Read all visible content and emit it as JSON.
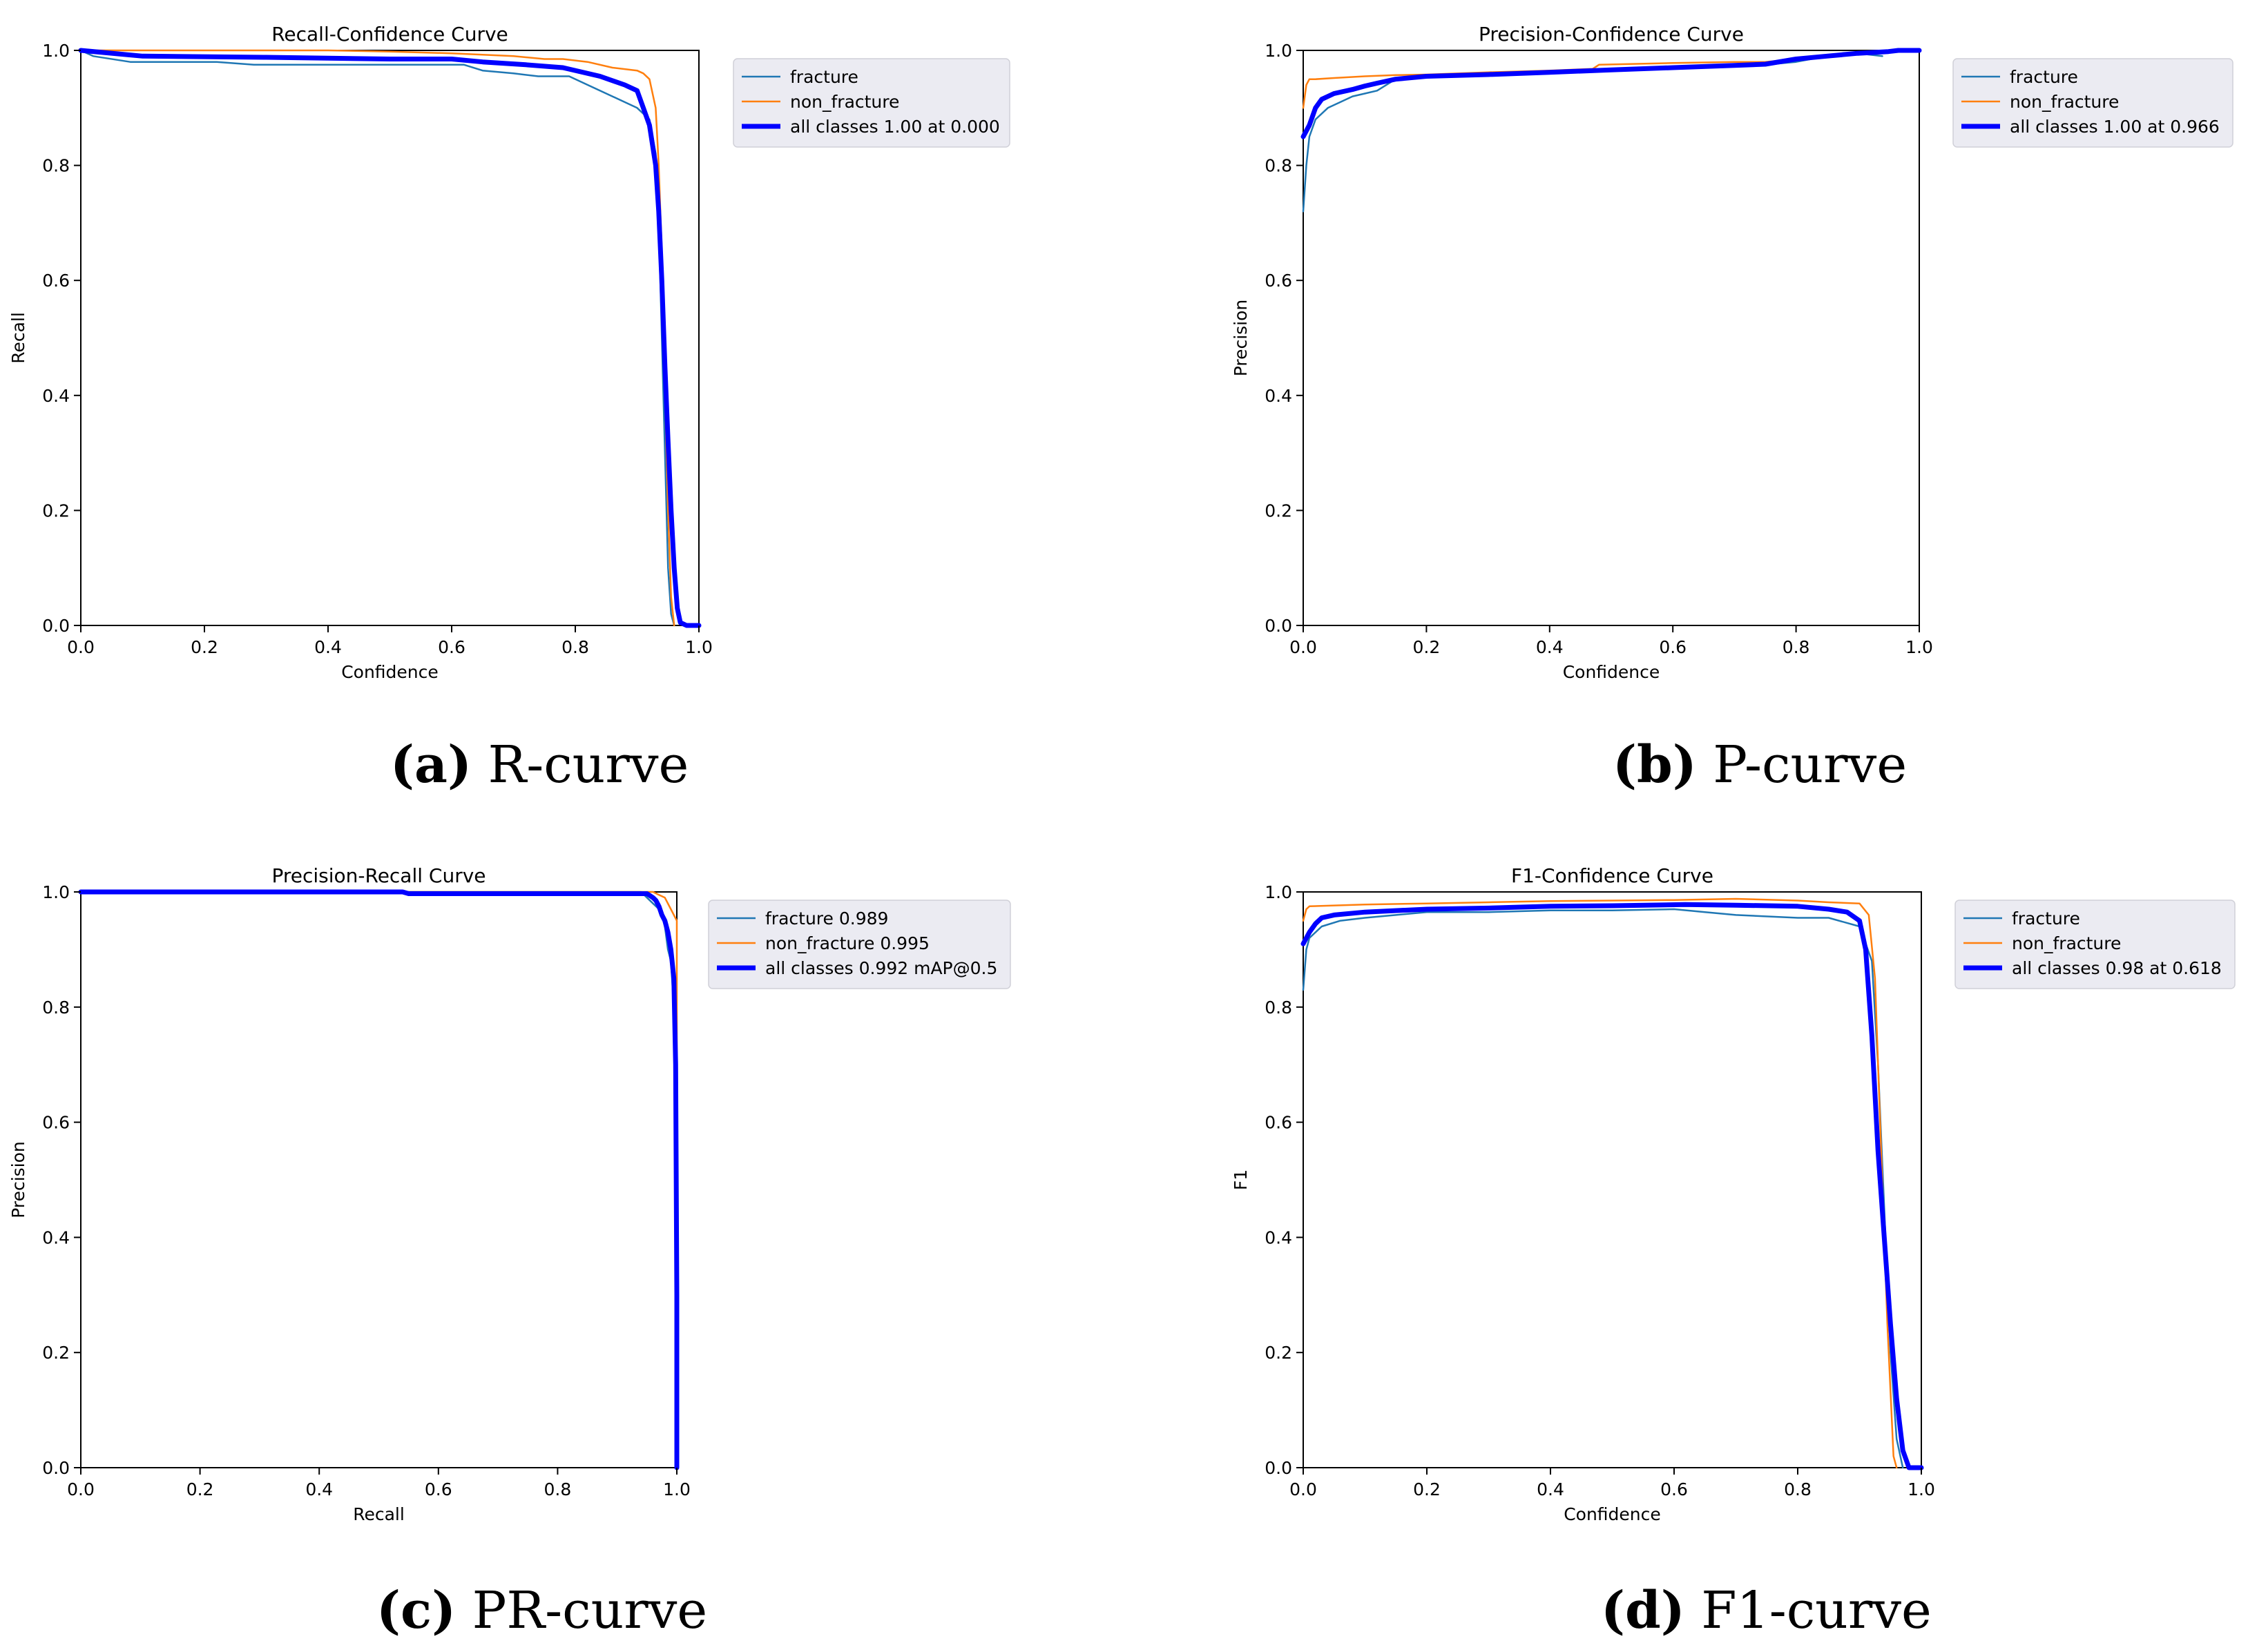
{
  "colors": {
    "fracture": "#1f77b4",
    "non_fracture": "#ff7f0e",
    "all_classes": "#0000ff",
    "legend_bg": "#ebebf2",
    "axis": "#000000"
  },
  "chart_data": [
    {
      "id": "a",
      "type": "line",
      "title": "Recall-Confidence Curve",
      "xlabel": "Confidence",
      "ylabel": "Recall",
      "xlim": [
        0,
        1
      ],
      "ylim": [
        0,
        1
      ],
      "xticks": [
        "0.0",
        "0.2",
        "0.4",
        "0.6",
        "0.8",
        "1.0"
      ],
      "yticks": [
        "0.0",
        "0.2",
        "0.4",
        "0.6",
        "0.8",
        "1.0"
      ],
      "grid": false,
      "legend_placement": "outside top-right",
      "series": [
        {
          "name": "fracture",
          "key": "fracture",
          "x": [
            0,
            0.02,
            0.08,
            0.22,
            0.28,
            0.62,
            0.65,
            0.7,
            0.74,
            0.79,
            0.82,
            0.86,
            0.9,
            0.92,
            0.93,
            0.935,
            0.94,
            0.945,
            0.95,
            0.955,
            0.96
          ],
          "y": [
            1.0,
            0.99,
            0.98,
            0.98,
            0.975,
            0.975,
            0.965,
            0.96,
            0.955,
            0.955,
            0.94,
            0.92,
            0.9,
            0.88,
            0.82,
            0.7,
            0.5,
            0.3,
            0.1,
            0.02,
            0.0
          ]
        },
        {
          "name": "non_fracture",
          "key": "non_fracture",
          "x": [
            0,
            0.4,
            0.5,
            0.6,
            0.7,
            0.75,
            0.78,
            0.82,
            0.86,
            0.9,
            0.91,
            0.92,
            0.93,
            0.935,
            0.94,
            0.945,
            0.95,
            0.955,
            0.96
          ],
          "y": [
            1.0,
            1.0,
            0.998,
            0.995,
            0.99,
            0.985,
            0.985,
            0.98,
            0.97,
            0.965,
            0.96,
            0.95,
            0.9,
            0.8,
            0.65,
            0.4,
            0.2,
            0.05,
            0.0
          ]
        },
        {
          "name": "all classes 1.00 at 0.000",
          "key": "all_classes",
          "x": [
            0,
            0.1,
            0.3,
            0.5,
            0.6,
            0.65,
            0.72,
            0.78,
            0.84,
            0.88,
            0.9,
            0.91,
            0.92,
            0.93,
            0.935,
            0.94,
            0.945,
            0.95,
            0.955,
            0.96,
            0.965,
            0.97,
            0.98,
            1.0
          ],
          "y": [
            1.0,
            0.99,
            0.988,
            0.985,
            0.985,
            0.98,
            0.975,
            0.97,
            0.955,
            0.94,
            0.93,
            0.9,
            0.87,
            0.8,
            0.72,
            0.6,
            0.45,
            0.32,
            0.2,
            0.1,
            0.03,
            0.005,
            0.0,
            0.0
          ]
        }
      ]
    },
    {
      "id": "b",
      "type": "line",
      "title": "Precision-Confidence Curve",
      "xlabel": "Confidence",
      "ylabel": "Precision",
      "xlim": [
        0,
        1
      ],
      "ylim": [
        0,
        1
      ],
      "xticks": [
        "0.0",
        "0.2",
        "0.4",
        "0.6",
        "0.8",
        "1.0"
      ],
      "yticks": [
        "0.0",
        "0.2",
        "0.4",
        "0.6",
        "0.8",
        "1.0"
      ],
      "grid": false,
      "legend_placement": "outside top-right",
      "series": [
        {
          "name": "fracture",
          "key": "fracture",
          "x": [
            0,
            0.005,
            0.01,
            0.02,
            0.04,
            0.06,
            0.08,
            0.1,
            0.12,
            0.15,
            0.2,
            0.3,
            0.4,
            0.5,
            0.6,
            0.7,
            0.75,
            0.8,
            0.85,
            0.9,
            0.94
          ],
          "y": [
            0.72,
            0.8,
            0.85,
            0.88,
            0.9,
            0.91,
            0.92,
            0.925,
            0.93,
            0.95,
            0.955,
            0.958,
            0.962,
            0.965,
            0.968,
            0.972,
            0.975,
            0.98,
            0.99,
            0.995,
            0.99
          ]
        },
        {
          "name": "non_fracture",
          "key": "non_fracture",
          "x": [
            0,
            0.005,
            0.01,
            0.02,
            0.05,
            0.1,
            0.15,
            0.2,
            0.3,
            0.4,
            0.47,
            0.48,
            0.6,
            0.7,
            0.75,
            0.8,
            0.85,
            0.9,
            0.95,
            1.0
          ],
          "y": [
            0.9,
            0.94,
            0.95,
            0.95,
            0.952,
            0.955,
            0.957,
            0.958,
            0.962,
            0.965,
            0.968,
            0.975,
            0.978,
            0.98,
            0.98,
            0.985,
            0.99,
            0.995,
            1.0,
            1.0
          ]
        },
        {
          "name": "all classes 1.00 at 0.966",
          "key": "all_classes",
          "x": [
            0,
            0.01,
            0.02,
            0.03,
            0.05,
            0.08,
            0.1,
            0.12,
            0.15,
            0.2,
            0.3,
            0.4,
            0.5,
            0.6,
            0.7,
            0.75,
            0.8,
            0.85,
            0.9,
            0.95,
            0.966,
            1.0
          ],
          "y": [
            0.85,
            0.87,
            0.9,
            0.915,
            0.925,
            0.932,
            0.938,
            0.943,
            0.95,
            0.955,
            0.958,
            0.962,
            0.966,
            0.97,
            0.974,
            0.976,
            0.985,
            0.99,
            0.995,
            0.998,
            1.0,
            1.0
          ]
        }
      ]
    },
    {
      "id": "c",
      "type": "line",
      "title": "Precision-Recall Curve",
      "xlabel": "Recall",
      "ylabel": "Precision",
      "xlim": [
        0,
        1
      ],
      "ylim": [
        0,
        1
      ],
      "xticks": [
        "0.0",
        "0.2",
        "0.4",
        "0.6",
        "0.8",
        "1.0"
      ],
      "yticks": [
        "0.0",
        "0.2",
        "0.4",
        "0.6",
        "0.8",
        "1.0"
      ],
      "grid": false,
      "legend_placement": "outside top-right",
      "series": [
        {
          "name": "fracture 0.989",
          "key": "fracture",
          "x": [
            0,
            0.94,
            0.95,
            0.96,
            0.97,
            0.975,
            0.98,
            0.985,
            0.99,
            0.995,
            1.0,
            1.0
          ],
          "y": [
            1.0,
            1.0,
            0.99,
            0.98,
            0.97,
            0.96,
            0.94,
            0.9,
            0.88,
            0.8,
            0.5,
            0.0
          ]
        },
        {
          "name": "non_fracture 0.995",
          "key": "non_fracture",
          "x": [
            0,
            0.96,
            0.97,
            0.98,
            0.99,
            1.0,
            1.0
          ],
          "y": [
            1.0,
            1.0,
            0.995,
            0.99,
            0.97,
            0.95,
            0.0
          ]
        },
        {
          "name": "all classes 0.992 mAP@0.5",
          "key": "all_classes",
          "x": [
            0,
            0.54,
            0.55,
            0.95,
            0.96,
            0.965,
            0.97,
            0.975,
            0.98,
            0.985,
            0.99,
            0.995,
            0.998,
            1.0,
            1.0
          ],
          "y": [
            1.0,
            1.0,
            0.997,
            0.997,
            0.99,
            0.985,
            0.975,
            0.96,
            0.95,
            0.93,
            0.9,
            0.85,
            0.7,
            0.3,
            0.0
          ]
        }
      ]
    },
    {
      "id": "d",
      "type": "line",
      "title": "F1-Confidence Curve",
      "xlabel": "Confidence",
      "ylabel": "F1",
      "xlim": [
        0,
        1
      ],
      "ylim": [
        0,
        1
      ],
      "xticks": [
        "0.0",
        "0.2",
        "0.4",
        "0.6",
        "0.8",
        "1.0"
      ],
      "yticks": [
        "0.0",
        "0.2",
        "0.4",
        "0.6",
        "0.8",
        "1.0"
      ],
      "grid": false,
      "legend_placement": "outside top-right",
      "series": [
        {
          "name": "fracture",
          "key": "fracture",
          "x": [
            0,
            0.005,
            0.01,
            0.03,
            0.06,
            0.1,
            0.15,
            0.2,
            0.3,
            0.4,
            0.5,
            0.6,
            0.65,
            0.7,
            0.8,
            0.85,
            0.9,
            0.92,
            0.93,
            0.94,
            0.95,
            0.96,
            0.97
          ],
          "y": [
            0.83,
            0.9,
            0.92,
            0.94,
            0.95,
            0.955,
            0.96,
            0.965,
            0.965,
            0.968,
            0.968,
            0.97,
            0.965,
            0.96,
            0.955,
            0.955,
            0.94,
            0.88,
            0.7,
            0.45,
            0.2,
            0.05,
            0.0
          ]
        },
        {
          "name": "non_fracture",
          "key": "non_fracture",
          "x": [
            0,
            0.005,
            0.01,
            0.1,
            0.2,
            0.3,
            0.4,
            0.5,
            0.6,
            0.7,
            0.8,
            0.85,
            0.9,
            0.915,
            0.925,
            0.935,
            0.945,
            0.955,
            0.96
          ],
          "y": [
            0.95,
            0.97,
            0.975,
            0.978,
            0.98,
            0.982,
            0.984,
            0.985,
            0.986,
            0.988,
            0.985,
            0.982,
            0.98,
            0.96,
            0.85,
            0.55,
            0.25,
            0.02,
            0.0
          ]
        },
        {
          "name": "all classes 0.98 at 0.618",
          "key": "all_classes",
          "x": [
            0,
            0.01,
            0.02,
            0.03,
            0.05,
            0.1,
            0.2,
            0.3,
            0.4,
            0.5,
            0.618,
            0.7,
            0.8,
            0.85,
            0.88,
            0.9,
            0.91,
            0.92,
            0.93,
            0.94,
            0.95,
            0.96,
            0.97,
            0.98,
            1.0
          ],
          "y": [
            0.91,
            0.93,
            0.945,
            0.955,
            0.96,
            0.965,
            0.97,
            0.972,
            0.975,
            0.976,
            0.978,
            0.977,
            0.975,
            0.97,
            0.965,
            0.95,
            0.9,
            0.75,
            0.55,
            0.4,
            0.25,
            0.12,
            0.03,
            0.0,
            0.0
          ]
        }
      ]
    }
  ],
  "captions": [
    {
      "letter": "(a)",
      "text": " R-curve"
    },
    {
      "letter": "(b)",
      "text": " P-curve"
    },
    {
      "letter": "(c)",
      "text": " PR-curve"
    },
    {
      "letter": "(d)",
      "text": " F1-curve"
    }
  ]
}
